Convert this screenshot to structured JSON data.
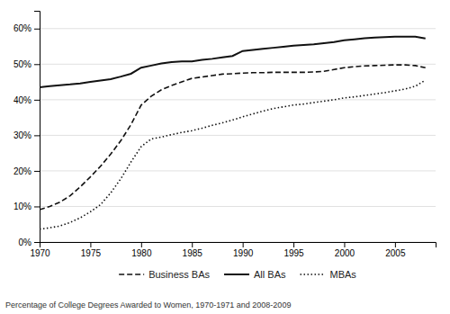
{
  "chart_data": {
    "type": "line",
    "subtitle": "Percentage of College Degrees Awarded to Women, 1970-1971 and 2008-2009",
    "x": [
      1970,
      1971,
      1972,
      1973,
      1974,
      1975,
      1976,
      1977,
      1978,
      1979,
      1980,
      1981,
      1982,
      1983,
      1984,
      1985,
      1986,
      1987,
      1988,
      1989,
      1990,
      1991,
      1992,
      1993,
      1994,
      1995,
      1996,
      1997,
      1998,
      1999,
      2000,
      2001,
      2002,
      2003,
      2004,
      2005,
      2006,
      2007,
      2008
    ],
    "series": [
      {
        "name": "Business BAs",
        "color": "#111111",
        "line_style": "dashed",
        "values": [
          0.091,
          0.1,
          0.112,
          0.13,
          0.155,
          0.183,
          0.213,
          0.247,
          0.285,
          0.33,
          0.385,
          0.41,
          0.428,
          0.44,
          0.45,
          0.46,
          0.464,
          0.468,
          0.472,
          0.473,
          0.475,
          0.476,
          0.476,
          0.477,
          0.477,
          0.477,
          0.477,
          0.478,
          0.48,
          0.485,
          0.49,
          0.493,
          0.495,
          0.496,
          0.497,
          0.498,
          0.498,
          0.496,
          0.49
        ]
      },
      {
        "name": "All BAs",
        "color": "#111111",
        "line_style": "solid",
        "values": [
          0.435,
          0.438,
          0.441,
          0.443,
          0.446,
          0.45,
          0.454,
          0.458,
          0.465,
          0.473,
          0.49,
          0.496,
          0.502,
          0.506,
          0.508,
          0.508,
          0.512,
          0.515,
          0.519,
          0.523,
          0.537,
          0.54,
          0.543,
          0.546,
          0.549,
          0.552,
          0.554,
          0.556,
          0.559,
          0.562,
          0.567,
          0.57,
          0.573,
          0.575,
          0.576,
          0.577,
          0.577,
          0.577,
          0.572
        ]
      },
      {
        "name": "MBAs",
        "color": "#111111",
        "line_style": "dotted",
        "values": [
          0.036,
          0.04,
          0.045,
          0.055,
          0.068,
          0.085,
          0.105,
          0.138,
          0.178,
          0.225,
          0.268,
          0.29,
          0.295,
          0.302,
          0.308,
          0.313,
          0.32,
          0.328,
          0.335,
          0.343,
          0.352,
          0.36,
          0.368,
          0.375,
          0.38,
          0.385,
          0.388,
          0.392,
          0.396,
          0.4,
          0.405,
          0.408,
          0.412,
          0.416,
          0.42,
          0.425,
          0.43,
          0.438,
          0.455
        ]
      }
    ],
    "xlim": [
      1970,
      2009
    ],
    "xticks": [
      1970,
      1975,
      1980,
      1985,
      1990,
      1995,
      2000,
      2005
    ],
    "ylim": [
      0,
      0.65
    ],
    "yticks": [
      {
        "value": 0.0,
        "label": "0%"
      },
      {
        "value": 0.1,
        "label": "10%"
      },
      {
        "value": 0.2,
        "label": "20%"
      },
      {
        "value": 0.3,
        "label": "30%"
      },
      {
        "value": 0.4,
        "label": "40%"
      },
      {
        "value": 0.5,
        "label": "50%"
      },
      {
        "value": 0.6,
        "label": "60%"
      }
    ],
    "grid": true,
    "legend": "bottom"
  }
}
